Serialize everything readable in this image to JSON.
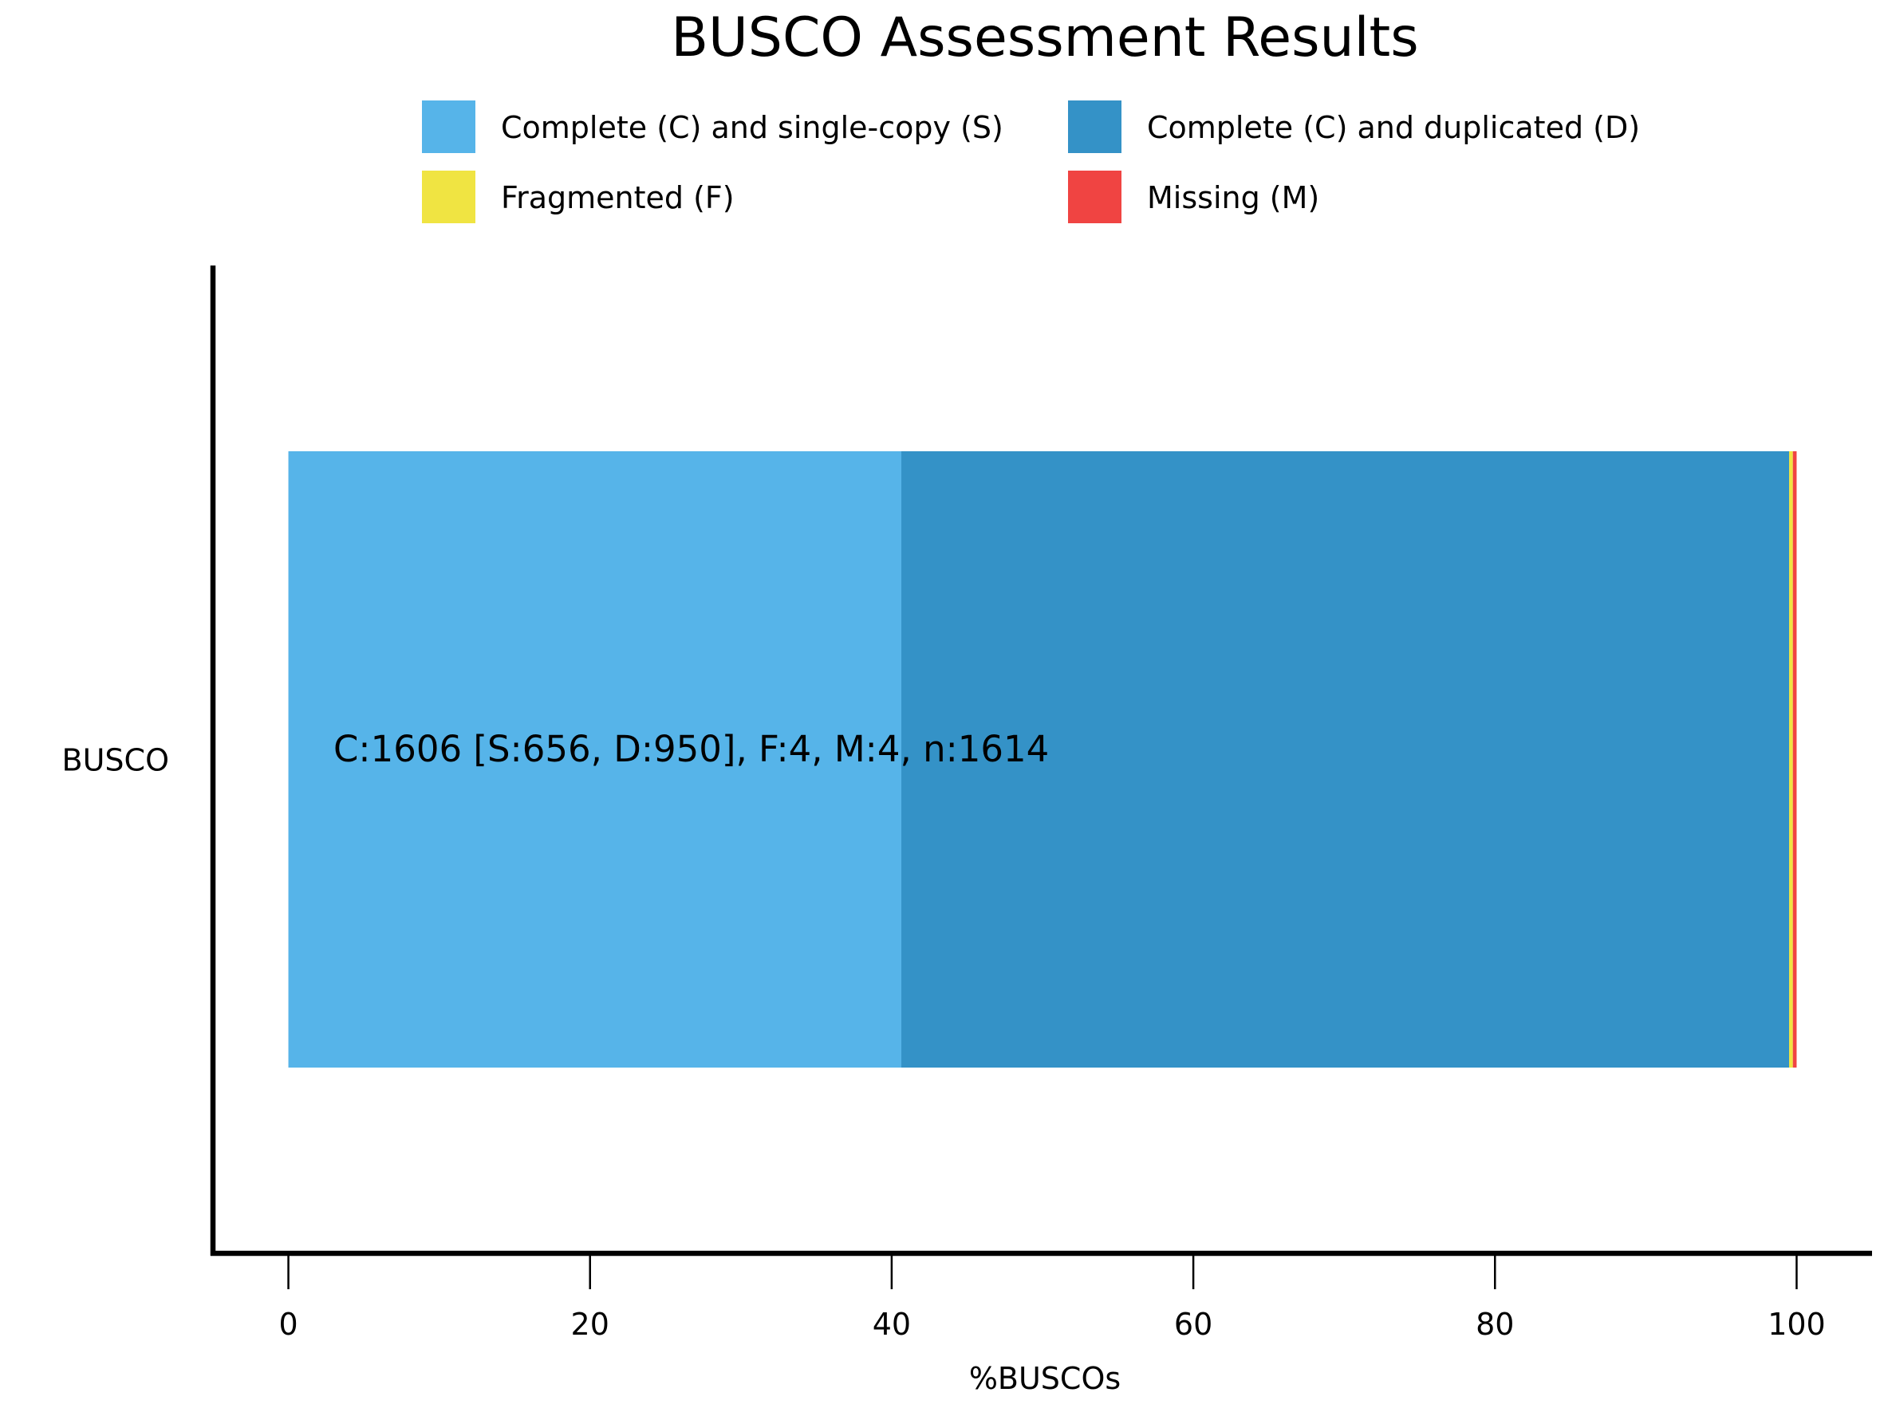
{
  "chart_data": {
    "type": "bar",
    "orientation": "horizontal",
    "stacked": true,
    "title": "BUSCO Assessment Results",
    "xlabel": "%BUSCOs",
    "ylabel": "",
    "categories": [
      "BUSCO"
    ],
    "xlim": [
      -5,
      105
    ],
    "xticks": [
      0,
      20,
      40,
      60,
      80,
      100
    ],
    "grid": false,
    "legend_position": "top",
    "series": [
      {
        "name": "Complete (C) and single-copy (S)",
        "values": [
          40.64
        ],
        "count": 656,
        "color": "#56B4E9"
      },
      {
        "name": "Complete (C) and duplicated (D)",
        "values": [
          58.86
        ],
        "count": 950,
        "color": "#3492C7"
      },
      {
        "name": "Fragmented (F)",
        "values": [
          0.25
        ],
        "count": 4,
        "color": "#F0E442"
      },
      {
        "name": "Missing (M)",
        "values": [
          0.25
        ],
        "count": 4,
        "color": "#F04442"
      }
    ],
    "annotation": "C:1606 [S:656, D:950], F:4, M:4, n:1614"
  }
}
